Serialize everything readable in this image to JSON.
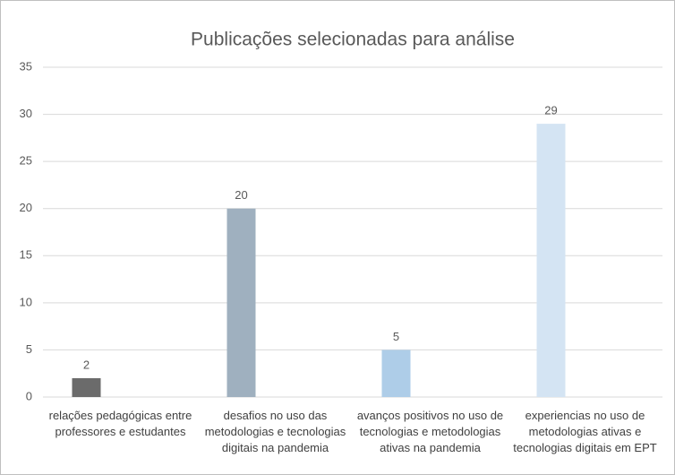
{
  "chart_data": {
    "type": "bar",
    "title": "Publicações selecionadas para análise",
    "categories": [
      "relações pedagógicas entre professores e estudantes",
      "desafios no uso das metodologias e tecnologias digitais na pandemia",
      "avanços positivos no uso de tecnologias e metodologias ativas na pandemia",
      "experiencias no uso de metodologias ativas e tecnologias digitais em EPT"
    ],
    "values": [
      2,
      20,
      5,
      29
    ],
    "colors": [
      "#6b6b6b",
      "#9fb0bf",
      "#aecde8",
      "#d4e4f3"
    ],
    "ylim": [
      0,
      35
    ],
    "yticks": [
      0,
      5,
      10,
      15,
      20,
      25,
      30,
      35
    ],
    "grid": true
  }
}
